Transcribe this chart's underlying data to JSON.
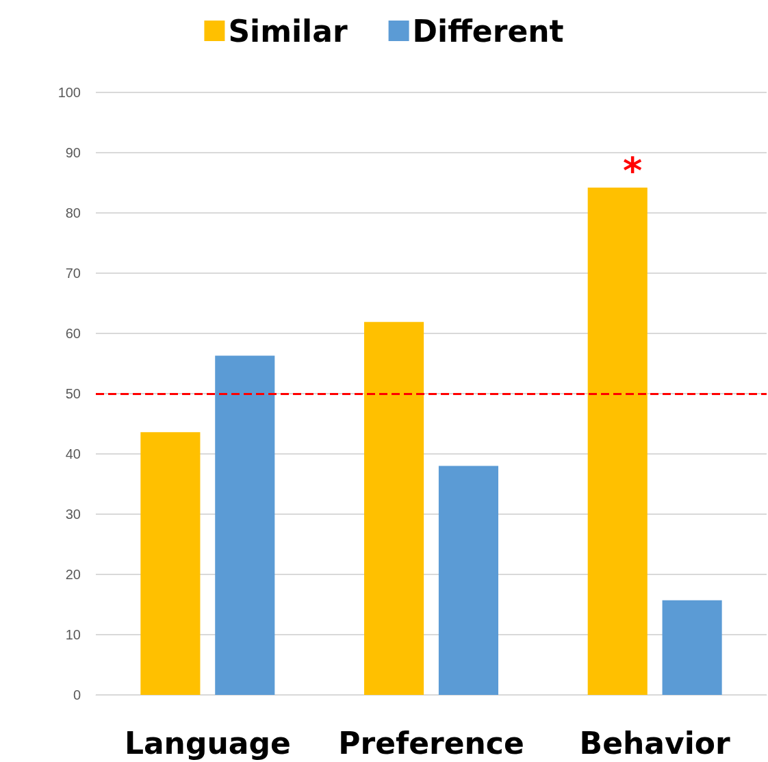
{
  "chart_data": {
    "type": "bar",
    "categories": [
      "Language",
      "Preference",
      "Behavior"
    ],
    "series": [
      {
        "name": "Similar",
        "color": "#ffc000",
        "values": [
          43.6,
          61.9,
          84.2
        ]
      },
      {
        "name": "Different",
        "color": "#5b9bd5",
        "values": [
          56.3,
          38,
          15.7
        ]
      }
    ],
    "ylim": [
      0,
      100
    ],
    "yticks": [
      0,
      10,
      20,
      30,
      40,
      50,
      60,
      70,
      80,
      90,
      100
    ],
    "grid": "y",
    "legend": "top",
    "ref_lines": [
      {
        "axis": "y",
        "value": 50,
        "color": "#ff0000",
        "line_style": "dashed"
      }
    ],
    "annotations": [
      "*"
    ]
  }
}
